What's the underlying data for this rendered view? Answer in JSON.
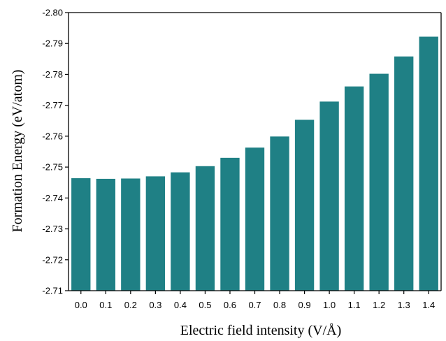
{
  "chart_data": {
    "type": "bar",
    "title": "",
    "xlabel": "Electric field intensity (V/Å)",
    "ylabel": "Formation Energy (eV/atom)",
    "categories": [
      "0.0",
      "0.1",
      "0.2",
      "0.3",
      "0.4",
      "0.5",
      "0.6",
      "0.7",
      "0.8",
      "0.9",
      "1.0",
      "1.1",
      "1.2",
      "1.3",
      "1.4"
    ],
    "values": [
      -2.7464,
      -2.7462,
      -2.7463,
      -2.747,
      -2.7483,
      -2.7503,
      -2.753,
      -2.7563,
      -2.7599,
      -2.7653,
      -2.7712,
      -2.7761,
      -2.7802,
      -2.7858,
      -2.7922
    ],
    "ylim": [
      -2.71,
      -2.8
    ],
    "yticks": [
      "-2.71",
      "-2.72",
      "-2.73",
      "-2.74",
      "-2.75",
      "-2.76",
      "-2.77",
      "-2.78",
      "-2.79",
      "-2.80"
    ],
    "ytick_values": [
      -2.71,
      -2.72,
      -2.73,
      -2.74,
      -2.75,
      -2.76,
      -2.77,
      -2.78,
      -2.79,
      -2.8
    ],
    "bar_color": "#1f8085",
    "grid": false,
    "legend": "none"
  }
}
